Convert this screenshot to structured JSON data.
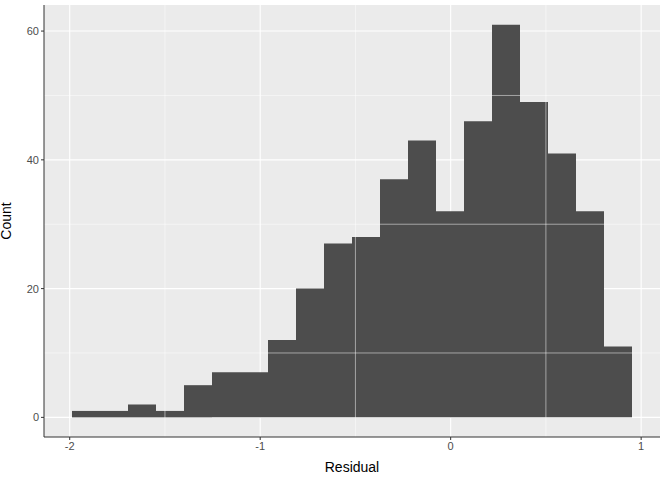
{
  "chart_data": {
    "type": "histogram",
    "x_label": "Residual",
    "y_label": "Count",
    "bins": [
      -1.988,
      -1.841,
      -1.694,
      -1.547,
      -1.4,
      -1.253,
      -1.106,
      -0.959,
      -0.812,
      -0.665,
      -0.518,
      -0.371,
      -0.224,
      -0.077,
      0.07,
      0.217,
      0.364,
      0.511,
      0.658,
      0.805,
      0.952
    ],
    "values": [
      1,
      1,
      2,
      1,
      5,
      7,
      7,
      12,
      20,
      27,
      28,
      37,
      43,
      32,
      46,
      61,
      49,
      41,
      32,
      11
    ],
    "color": "#4d4d4d",
    "xlim": [
      -2.135,
      1.099
    ],
    "xticks": [
      -2,
      -1,
      0,
      1
    ],
    "ylim": [
      -3.05,
      64.05
    ],
    "yticks": [
      0,
      20,
      40,
      60
    ],
    "grid": true
  }
}
